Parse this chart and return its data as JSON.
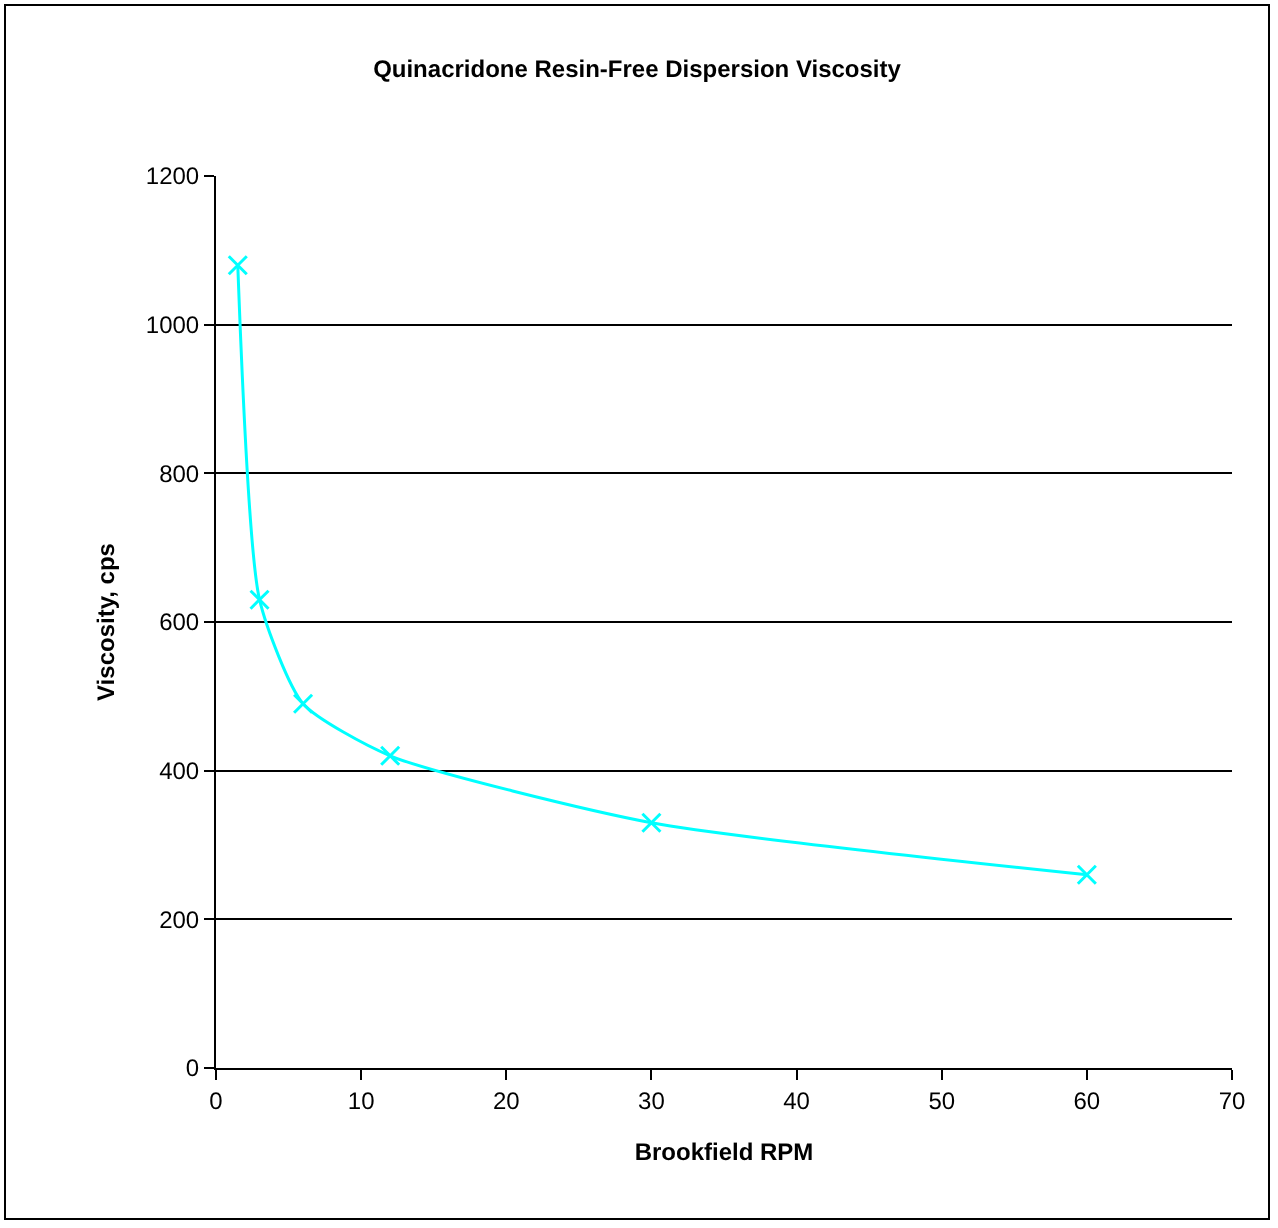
{
  "chart_data": {
    "type": "line",
    "title": "Quinacridone Resin-Free Dispersion Viscosity",
    "xlabel": "Brookfield RPM",
    "ylabel": "Viscosity, cps",
    "x": [
      1.5,
      3,
      6,
      12,
      30,
      60
    ],
    "series": [
      {
        "color": "#00ffff",
        "values": [
          1080,
          630,
          490,
          420,
          330,
          260
        ]
      }
    ],
    "xlim": [
      0,
      70
    ],
    "xticks": [
      0,
      10,
      20,
      30,
      40,
      50,
      60,
      70
    ],
    "ylim": [
      0,
      1200
    ],
    "yticks": [
      0,
      200,
      400,
      600,
      800,
      1000,
      1200
    ],
    "grid": "y",
    "marker": "cross",
    "line_style": "solid"
  }
}
